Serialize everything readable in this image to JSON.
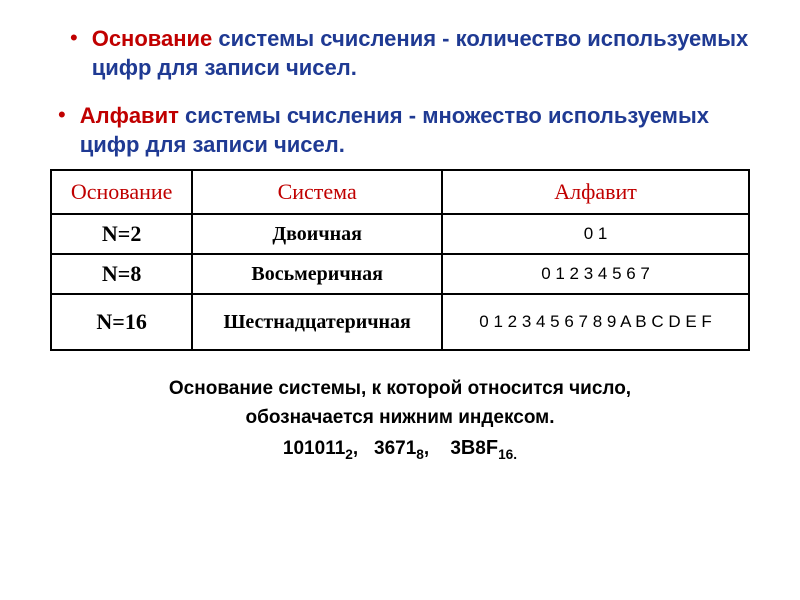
{
  "def1": {
    "highlight": "Основание",
    "rest": " системы счисления - количество используемых цифр для записи чисел."
  },
  "def2": {
    "highlight": "Алфавит",
    "rest": " системы счисления - множество используемых цифр для записи чисел."
  },
  "table": {
    "headers": [
      "Основание",
      "Система",
      "Алфавит"
    ],
    "rows": [
      {
        "base": "N=2",
        "system": "Двоичная",
        "alphabet": "0 1"
      },
      {
        "base": "N=8",
        "system": "Восьмеричная",
        "alphabet": "0 1 2 3 4 5 6 7"
      },
      {
        "base": "N=16",
        "system": "Шестнадцатеричная",
        "alphabet": "0 1 2 3 4 5 6 7 8 9 A B C D E F"
      }
    ]
  },
  "footer": {
    "line1": "Основание системы, к которой относится число,",
    "line2": "обозначается нижним индексом.",
    "n1": "101011",
    "s1": "2",
    "n2": "3671",
    "s2": "8",
    "n3a": "3",
    "n3b": "В",
    "n3c": "8",
    "n3d": "F",
    "s3": "16."
  },
  "colors": {
    "highlight": "#c00000",
    "primary_text": "#1f3a93",
    "border": "#000000",
    "background": "#ffffff"
  }
}
